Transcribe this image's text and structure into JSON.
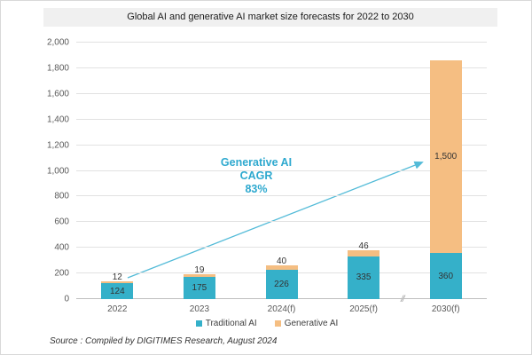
{
  "title": "Global AI and generative AI market size forecasts for 2022 to 2030",
  "source_note": "Source : Compiled by DIGITIMES Research, August 2024",
  "annotation": {
    "line1": "Generative AI",
    "line2": "CAGR",
    "line3": "83%"
  },
  "axis_break_symbol": "//",
  "colors": {
    "traditional": "#35b0c9",
    "generative": "#f5be82",
    "annotation_text": "#2ea9cf",
    "arrow": "#53bbd8",
    "gridline": "#e2e2e2",
    "title_bar_bg": "#f0f0f0"
  },
  "legend": [
    {
      "label": "Traditional AI",
      "color": "#35b0c9"
    },
    {
      "label": "Generative AI",
      "color": "#f5be82"
    }
  ],
  "chart_data": {
    "type": "bar",
    "stacked": true,
    "title": "Global AI and generative AI market size forecasts for 2022 to 2030",
    "categories": [
      "2022",
      "2023",
      "2024(f)",
      "2025(f)",
      "2030(f)"
    ],
    "series": [
      {
        "name": "Traditional AI",
        "color": "#35b0c9",
        "values": [
          124,
          175,
          226,
          335,
          360
        ]
      },
      {
        "name": "Generative AI",
        "color": "#f5be82",
        "values": [
          12,
          19,
          40,
          46,
          1500
        ]
      }
    ],
    "value_labels": {
      "traditional": [
        "124",
        "175",
        "226",
        "335",
        "360"
      ],
      "generative": [
        "12",
        "19",
        "40",
        "46",
        "1,500"
      ]
    },
    "ylim": [
      0,
      2000
    ],
    "ytick_step": 200,
    "yticks": [
      "0",
      "200",
      "400",
      "600",
      "800",
      "1,000",
      "1,200",
      "1,400",
      "1,600",
      "1,800",
      "2,000"
    ],
    "grid": true,
    "legend_position": "bottom",
    "annotation": "Generative AI CAGR 83%",
    "x_axis_break_between": [
      "2025(f)",
      "2030(f)"
    ]
  }
}
